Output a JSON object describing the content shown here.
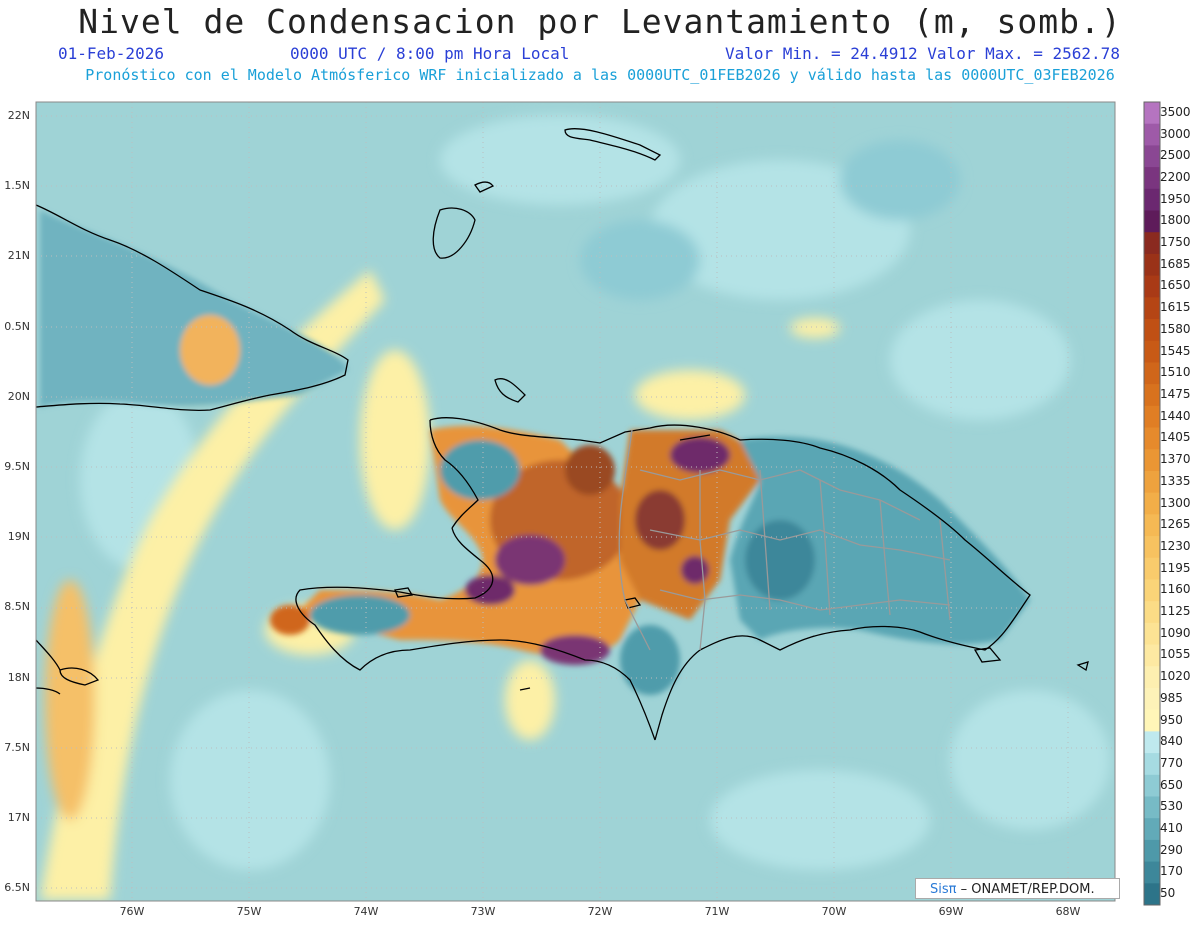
{
  "header": {
    "title": "Nivel de Condensacion por Levantamiento (m, somb.)",
    "date": "01-Feb-2026",
    "time": "0000 UTC / 8:00 pm Hora Local",
    "min_max": "Valor Min. = 24.4912  Valor Max. = 2562.78",
    "forecast": "Pronóstico con el Modelo Atmósferico WRF inicializado a las 0000UTC_01FEB2026 y válido hasta las  0000UTC_03FEB2026"
  },
  "axes": {
    "lat_labels": [
      "22N",
      "1.5N",
      "21N",
      "0.5N",
      "20N",
      "9.5N",
      "19N",
      "8.5N",
      "18N",
      "7.5N",
      "17N",
      "6.5N"
    ],
    "lon_labels": [
      "76W",
      "75W",
      "74W",
      "73W",
      "72W",
      "71W",
      "70W",
      "69W",
      "68W"
    ]
  },
  "colorbar": {
    "labels": [
      "3500",
      "3000",
      "2500",
      "2200",
      "1950",
      "1800",
      "1750",
      "1685",
      "1650",
      "1615",
      "1580",
      "1545",
      "1510",
      "1475",
      "1440",
      "1405",
      "1370",
      "1335",
      "1300",
      "1265",
      "1230",
      "1195",
      "1160",
      "1125",
      "1090",
      "1055",
      "1020",
      "985",
      "950",
      "840",
      "770",
      "650",
      "530",
      "410",
      "290",
      "170",
      "50"
    ],
    "colors": [
      "#b574c0",
      "#9e5aa8",
      "#8a4793",
      "#7a357f",
      "#6b2870",
      "#5e1b5a",
      "#8a2a20",
      "#9a3218",
      "#a93a16",
      "#b54514",
      "#c05014",
      "#c85a16",
      "#d0661a",
      "#d8721e",
      "#e07e24",
      "#e68a2c",
      "#ea9634",
      "#eea23e",
      "#f2ae48",
      "#f5b954",
      "#f7c260",
      "#f9cb6c",
      "#fad478",
      "#fbdc86",
      "#fce394",
      "#fde9a2",
      "#fdefb0",
      "#fdf2b8",
      "#fff6b8",
      "#bfe9ee",
      "#a6dbe2",
      "#8ecbd4",
      "#77bbc6",
      "#62aab8",
      "#4e99a9",
      "#3d879a",
      "#2d7489"
    ]
  },
  "credit": {
    "logo": "Sisπ",
    "text": "– ONAMET/REP.DOM."
  },
  "map_colors": {
    "ocean": "#9fd3d6",
    "ocean_light": "#b4e3e6",
    "land_low": "#4f9cab",
    "yellow": "#fdf0a6",
    "orange": "#e38a2e",
    "brown": "#9a4a22",
    "purple": "#6e2c6a",
    "coast": "#000000",
    "border": "#999999"
  }
}
